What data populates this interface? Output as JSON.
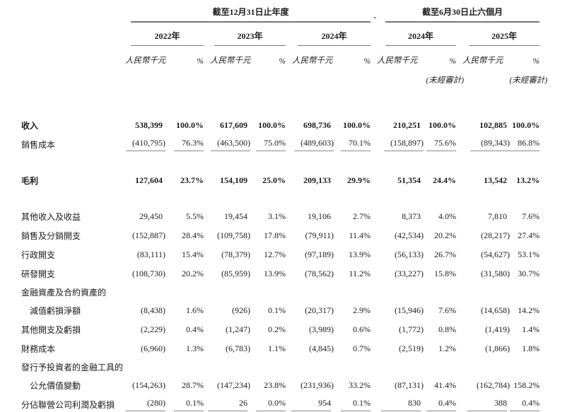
{
  "table": {
    "period_headers": [
      "截至12月31日止年度",
      "截至6月30日止六個月"
    ],
    "separator": "-",
    "year_headers": [
      "2022年",
      "2023年",
      "2024年",
      "2024年",
      "2025年"
    ],
    "unit_header": "人民幣千元",
    "percent_header": "%",
    "unaudited_note": "(未經審計)",
    "rows": [
      {
        "label": "收入",
        "bold": true,
        "cells": [
          [
            "538,399",
            "100.0%"
          ],
          [
            "617,609",
            "100.0%"
          ],
          [
            "698,736",
            "100.0%"
          ],
          [
            "210,251",
            "100.0%"
          ],
          [
            "102,885",
            "100.0%"
          ]
        ]
      },
      {
        "label": "銷售成本",
        "underline": true,
        "cells": [
          [
            "(410,795)",
            "76.3%"
          ],
          [
            "(463,500)",
            "75.0%"
          ],
          [
            "(489,603)",
            "70.1%"
          ],
          [
            "(158,897)",
            "75.6%"
          ],
          [
            "(89,343)",
            "86.8%"
          ]
        ]
      },
      {
        "label": "毛利",
        "bold": true,
        "gap_before": true,
        "cells": [
          [
            "127,604",
            "23.7%"
          ],
          [
            "154,109",
            "25.0%"
          ],
          [
            "209,133",
            "29.9%"
          ],
          [
            "51,354",
            "24.4%"
          ],
          [
            "13,542",
            "13.2%"
          ]
        ]
      },
      {
        "label": "其他收入及收益",
        "gap_before": true,
        "cells": [
          [
            "29,450",
            "5.5%"
          ],
          [
            "19,454",
            "3.1%"
          ],
          [
            "19,106",
            "2.7%"
          ],
          [
            "8,373",
            "4.0%"
          ],
          [
            "7,810",
            "7.6%"
          ]
        ]
      },
      {
        "label": "銷售及分銷開支",
        "cells": [
          [
            "(152,887)",
            "28.4%"
          ],
          [
            "(109,758)",
            "17.8%"
          ],
          [
            "(79,911)",
            "11.4%"
          ],
          [
            "(42,534)",
            "20.2%"
          ],
          [
            "(28,217)",
            "27.4%"
          ]
        ]
      },
      {
        "label": "行政開支",
        "cells": [
          [
            "(83,111)",
            "15.4%"
          ],
          [
            "(78,379)",
            "12.7%"
          ],
          [
            "(97,189)",
            "13.9%"
          ],
          [
            "(56,133)",
            "26.7%"
          ],
          [
            "(54,627)",
            "53.1%"
          ]
        ]
      },
      {
        "label": "研發開支",
        "cells": [
          [
            "(108,730)",
            "20.2%"
          ],
          [
            "(85,959)",
            "13.9%"
          ],
          [
            "(78,562)",
            "11.2%"
          ],
          [
            "(33,227)",
            "15.8%"
          ],
          [
            "(31,580)",
            "30.7%"
          ]
        ]
      },
      {
        "label": "金融資產及合約資產的",
        "label_only": true
      },
      {
        "label": "減值虧損淨額",
        "indent": true,
        "cells": [
          [
            "(8,438)",
            "1.6%"
          ],
          [
            "(926)",
            "0.1%"
          ],
          [
            "(20,317)",
            "2.9%"
          ],
          [
            "(15,946)",
            "7.6%"
          ],
          [
            "(14,658)",
            "14.2%"
          ]
        ]
      },
      {
        "label": "其他開支及虧損",
        "cells": [
          [
            "(2,229)",
            "0.4%"
          ],
          [
            "(1,247)",
            "0.2%"
          ],
          [
            "(3,989)",
            "0.6%"
          ],
          [
            "(1,772)",
            "0.8%"
          ],
          [
            "(1,419)",
            "1.4%"
          ]
        ]
      },
      {
        "label": "財務成本",
        "cells": [
          [
            "(6,960)",
            "1.3%"
          ],
          [
            "(6,783)",
            "1.1%"
          ],
          [
            "(4,845)",
            "0.7%"
          ],
          [
            "(2,519)",
            "1.2%"
          ],
          [
            "(1,866)",
            "1.8%"
          ]
        ]
      },
      {
        "label": "發行予投資者的金融工具的",
        "label_only": true
      },
      {
        "label": "公允價值變動",
        "indent": true,
        "cells": [
          [
            "(154,263)",
            "28.7%"
          ],
          [
            "(147,234)",
            "23.8%"
          ],
          [
            "(231,936)",
            "33.2%"
          ],
          [
            "(87,131)",
            "41.4%"
          ],
          [
            "(162,784)",
            "158.2%"
          ]
        ]
      },
      {
        "label": "分佔聯營公司利潤及虧損",
        "underline": true,
        "cells": [
          [
            "(280)",
            "0.1%"
          ],
          [
            "26",
            "0.0%"
          ],
          [
            "954",
            "0.1%"
          ],
          [
            "830",
            "0.4%"
          ],
          [
            "388",
            "0.4%"
          ]
        ]
      }
    ]
  }
}
